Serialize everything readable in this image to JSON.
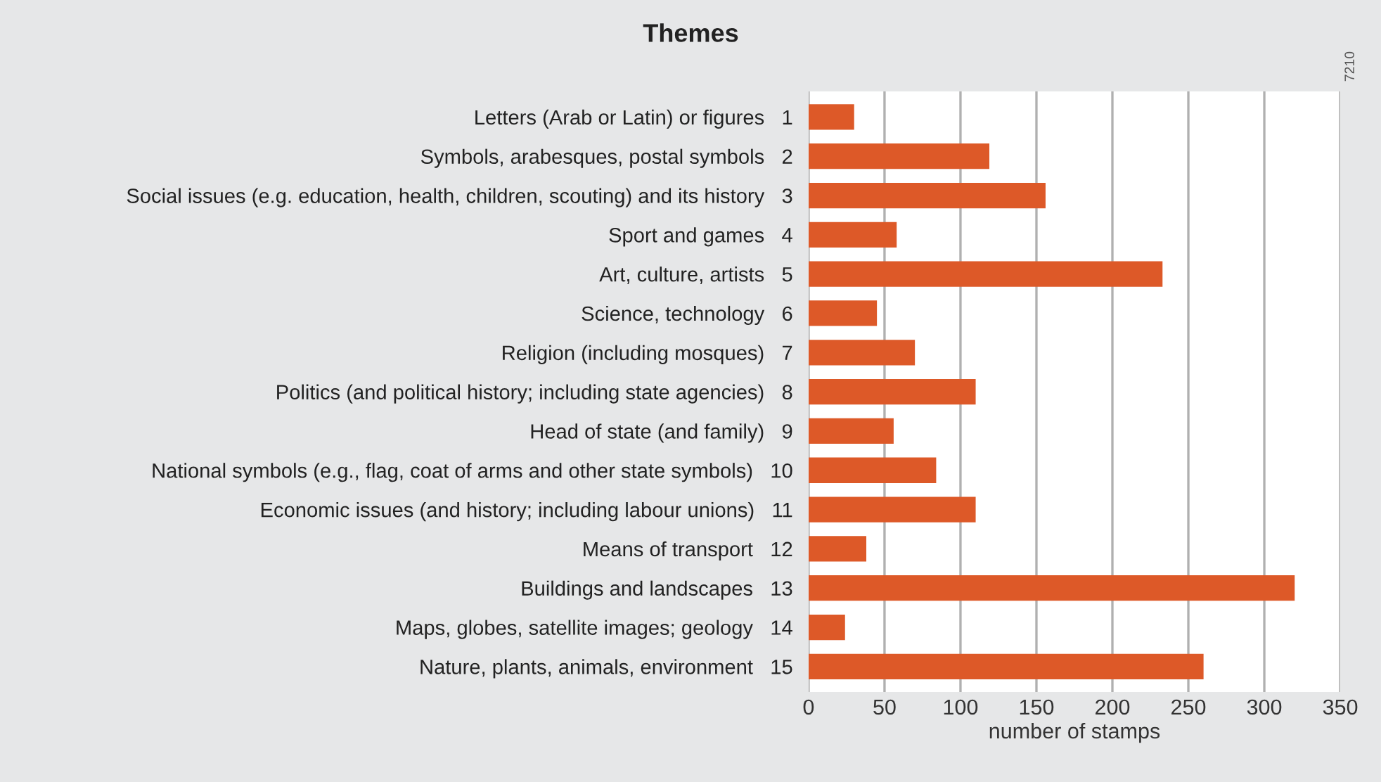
{
  "chart_data": {
    "type": "bar",
    "orientation": "horizontal",
    "title": "Themes",
    "xlabel": "number of stamps",
    "categories": [
      "Letters (Arab or Latin) or figures   1",
      "Symbols, arabesques, postal symbols   2",
      "Social issues (e.g. education, health, children, scouting) and its history   3",
      "Sport and games   4",
      "Art, culture, artists   5",
      "Science, technology   6",
      "Religion (including mosques)   7",
      "Politics (and political history; including state agencies)   8",
      "Head of state (and family)   9",
      "National symbols (e.g., flag, coat of arms and other state symbols)   10",
      "Economic issues (and history; including labour unions)   11",
      "Means of transport   12",
      "Buildings and landscapes   13",
      "Maps, globes, satellite images; geology   14",
      "Nature, plants, animals, environment   15"
    ],
    "values": [
      30,
      119,
      156,
      58,
      233,
      45,
      70,
      110,
      56,
      84,
      110,
      38,
      320,
      24,
      260
    ],
    "color": "#dd5928",
    "xlim": [
      0,
      350
    ],
    "xticks": [
      0,
      50,
      100,
      150,
      200,
      250,
      300,
      350
    ],
    "grid": "x",
    "annotations": [
      "7210"
    ]
  }
}
